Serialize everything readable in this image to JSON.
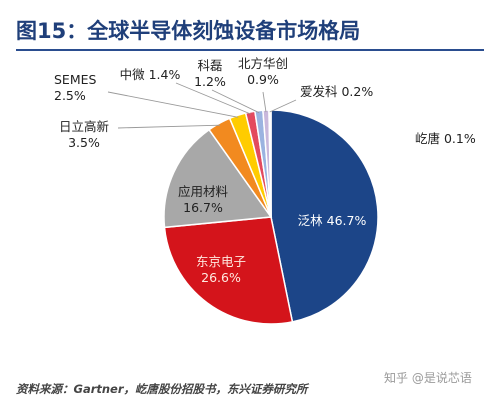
{
  "title": "图15：全球半导体刻蚀设备市场格局",
  "source": "资料来源：Gartner，屹唐股份招股书，东兴证券研究所",
  "watermark": "知乎 @是说芯语",
  "colors": {
    "title": "#1f3f7a",
    "rule": "#2a4d8f"
  },
  "chart_data": {
    "type": "pie",
    "start": "12 o'clock",
    "direction": "clockwise",
    "unit": "%",
    "slices": [
      {
        "name": "泛林",
        "value": 46.7,
        "label": "泛林 46.7%",
        "color": "#1c4588",
        "text_color": "#ffffff",
        "label_position": "inside"
      },
      {
        "name": "东京电子",
        "value": 26.6,
        "label": "东京电子\n26.6%",
        "color": "#d4141b",
        "text_color": "#ffe9e0",
        "label_position": "inside"
      },
      {
        "name": "应用材料",
        "value": 16.7,
        "label": "应用材料\n16.7%",
        "color": "#a8a8a8",
        "text_color": "#222222",
        "label_position": "inside"
      },
      {
        "name": "日立高新",
        "value": 3.5,
        "label": "日立高新\n3.5%",
        "color": "#f28a1f",
        "text_color": "#222222",
        "label_position": "outside"
      },
      {
        "name": "SEMES",
        "value": 2.5,
        "label": "SEMES\n2.5%",
        "color": "#ffcc00",
        "text_color": "#222222",
        "label_position": "outside"
      },
      {
        "name": "中微",
        "value": 1.4,
        "label": "中微 1.4%",
        "color": "#e34a5e",
        "text_color": "#222222",
        "label_position": "outside"
      },
      {
        "name": "科磊",
        "value": 1.2,
        "label": "科磊\n1.2%",
        "color": "#9bb3e0",
        "text_color": "#222222",
        "label_position": "outside"
      },
      {
        "name": "北方华创",
        "value": 0.9,
        "label": "北方华创\n0.9%",
        "color": "#c9b8dc",
        "text_color": "#222222",
        "label_position": "outside"
      },
      {
        "name": "爱发科",
        "value": 0.2,
        "label": "爱发科  0.2%",
        "color": "#5fb0b5",
        "text_color": "#222222",
        "label_position": "outside"
      },
      {
        "name": "屹唐",
        "value": 0.1,
        "label": "屹唐  0.1%",
        "color": "#f5e08a",
        "text_color": "#222222",
        "label_position": "outside"
      }
    ]
  }
}
